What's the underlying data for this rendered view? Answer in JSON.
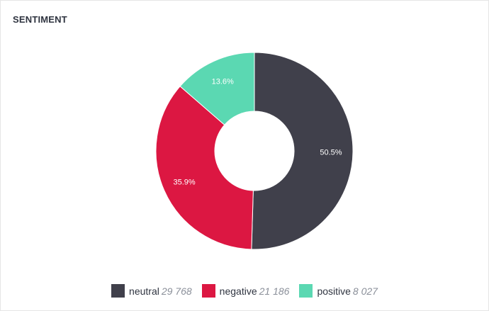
{
  "title": "SENTIMENT",
  "chart_data": {
    "type": "pie",
    "variant": "donut",
    "title": "SENTIMENT",
    "legend_position": "bottom",
    "series": [
      {
        "name": "neutral",
        "value": 29768,
        "value_label": "29 768",
        "percent_label": "50.5%",
        "color": "#40404b"
      },
      {
        "name": "negative",
        "value": 21186,
        "value_label": "21 186",
        "percent_label": "35.9%",
        "color": "#dc1742"
      },
      {
        "name": "positive",
        "value": 8027,
        "value_label": "8 027",
        "percent_label": "13.6%",
        "color": "#5bd8b2"
      }
    ]
  }
}
